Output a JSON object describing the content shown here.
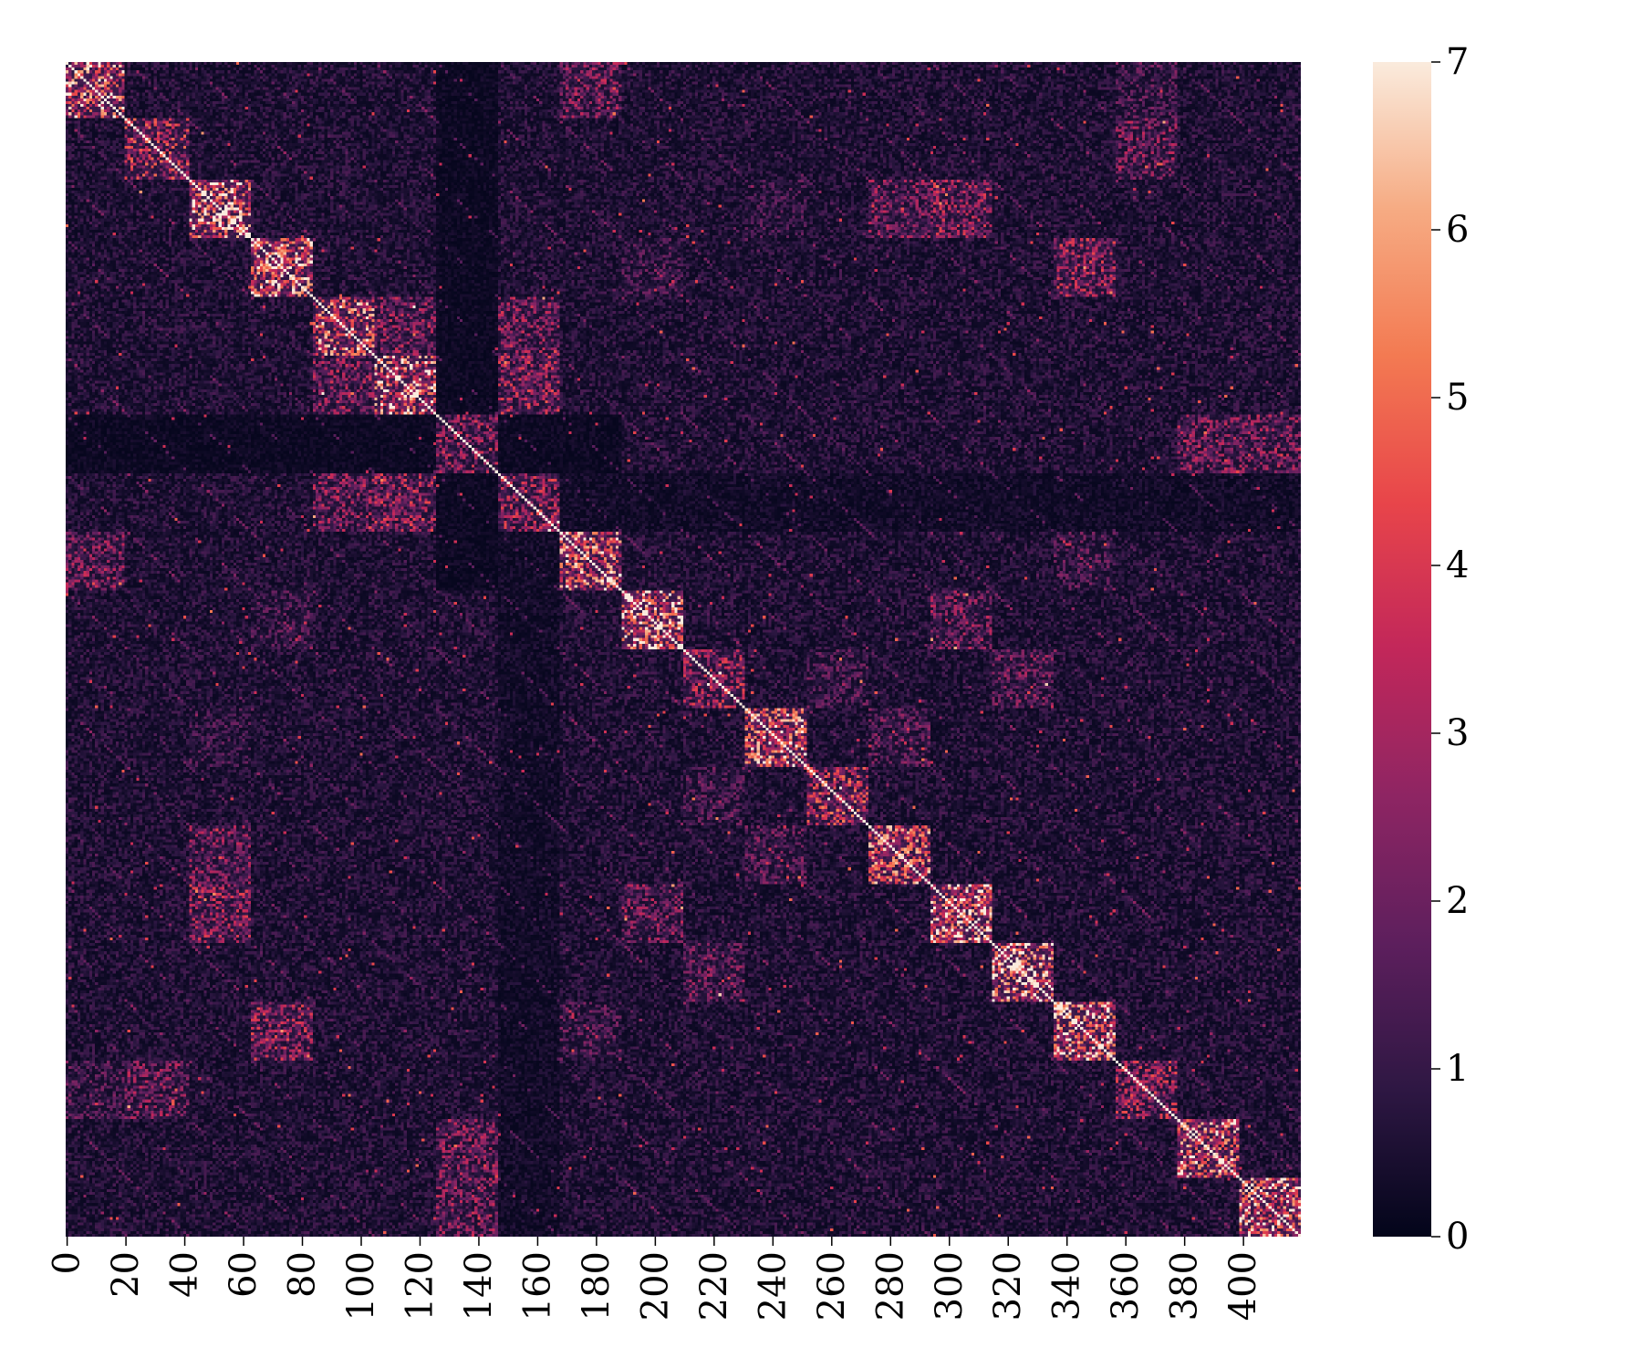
{
  "chart_data": {
    "type": "heatmap",
    "title": "",
    "xlabel": "",
    "ylabel": "",
    "matrix_size": 420,
    "x_ticks": [
      "0",
      "20",
      "40",
      "60",
      "80",
      "100",
      "120",
      "140",
      "160",
      "180",
      "200",
      "220",
      "240",
      "260",
      "280",
      "300",
      "320",
      "340",
      "360",
      "380",
      "400"
    ],
    "x_tick_values": [
      0,
      20,
      40,
      60,
      80,
      100,
      120,
      140,
      160,
      180,
      200,
      220,
      240,
      260,
      280,
      300,
      320,
      340,
      360,
      380,
      400
    ],
    "y_ticks": [],
    "colorbar": {
      "range": [
        0,
        7
      ],
      "ticks": [
        "0",
        "1",
        "2",
        "3",
        "4",
        "5",
        "6",
        "7"
      ],
      "tick_values": [
        0,
        1,
        2,
        3,
        4,
        5,
        6,
        7
      ],
      "colors": [
        "#03051a",
        "#2e1743",
        "#5d1f5d",
        "#8e2563",
        "#c2275a",
        "#e8454a",
        "#f37a52",
        "#f6ab83",
        "#faebdd"
      ]
    },
    "diagonal_blocks": [
      {
        "start": 0,
        "end": 20,
        "intensity": 4.2
      },
      {
        "start": 20,
        "end": 42,
        "intensity": 2.8
      },
      {
        "start": 42,
        "end": 63,
        "intensity": 4.5
      },
      {
        "start": 63,
        "end": 84,
        "intensity": 4.3
      },
      {
        "start": 84,
        "end": 105,
        "intensity": 4.0
      },
      {
        "start": 105,
        "end": 126,
        "intensity": 4.3
      },
      {
        "start": 126,
        "end": 147,
        "intensity": 2.3
      },
      {
        "start": 147,
        "end": 168,
        "intensity": 2.5
      },
      {
        "start": 168,
        "end": 189,
        "intensity": 4.0
      },
      {
        "start": 189,
        "end": 210,
        "intensity": 4.8
      },
      {
        "start": 210,
        "end": 231,
        "intensity": 2.5
      },
      {
        "start": 231,
        "end": 252,
        "intensity": 4.2
      },
      {
        "start": 252,
        "end": 273,
        "intensity": 3.0
      },
      {
        "start": 273,
        "end": 294,
        "intensity": 3.8
      },
      {
        "start": 294,
        "end": 315,
        "intensity": 4.4
      },
      {
        "start": 315,
        "end": 336,
        "intensity": 4.6
      },
      {
        "start": 336,
        "end": 357,
        "intensity": 4.6
      },
      {
        "start": 357,
        "end": 378,
        "intensity": 2.6
      },
      {
        "start": 378,
        "end": 399,
        "intensity": 4.2
      },
      {
        "start": 399,
        "end": 420,
        "intensity": 4.6
      }
    ],
    "off_diagonal_blocks": [
      {
        "rows": [
          0,
          20
        ],
        "cols": [
          168,
          189
        ],
        "intensity": 2.1
      },
      {
        "rows": [
          0,
          20
        ],
        "cols": [
          357,
          378
        ],
        "intensity": 1.4
      },
      {
        "rows": [
          20,
          42
        ],
        "cols": [
          357,
          378
        ],
        "intensity": 2.0
      },
      {
        "rows": [
          42,
          63
        ],
        "cols": [
          273,
          294
        ],
        "intensity": 2.0
      },
      {
        "rows": [
          42,
          63
        ],
        "cols": [
          294,
          315
        ],
        "intensity": 2.4
      },
      {
        "rows": [
          42,
          63
        ],
        "cols": [
          231,
          252
        ],
        "intensity": 1.2
      },
      {
        "rows": [
          63,
          84
        ],
        "cols": [
          336,
          357
        ],
        "intensity": 2.5
      },
      {
        "rows": [
          63,
          84
        ],
        "cols": [
          189,
          210
        ],
        "intensity": 1.3
      },
      {
        "rows": [
          84,
          105
        ],
        "cols": [
          147,
          168
        ],
        "intensity": 2.2
      },
      {
        "rows": [
          105,
          126
        ],
        "cols": [
          147,
          168
        ],
        "intensity": 2.5
      },
      {
        "rows": [
          84,
          105
        ],
        "cols": [
          105,
          126
        ],
        "intensity": 2.2
      },
      {
        "rows": [
          126,
          147
        ],
        "cols": [
          378,
          420
        ],
        "intensity": 2.1
      },
      {
        "rows": [
          147,
          168
        ],
        "cols": [
          84,
          105
        ],
        "intensity": 2.1
      },
      {
        "rows": [
          147,
          168
        ],
        "cols": [
          105,
          126
        ],
        "intensity": 2.5
      },
      {
        "rows": [
          168,
          189
        ],
        "cols": [
          336,
          357
        ],
        "intensity": 1.4
      },
      {
        "rows": [
          189,
          210
        ],
        "cols": [
          294,
          315
        ],
        "intensity": 2.0
      },
      {
        "rows": [
          210,
          231
        ],
        "cols": [
          315,
          336
        ],
        "intensity": 1.8
      },
      {
        "rows": [
          231,
          252
        ],
        "cols": [
          273,
          294
        ],
        "intensity": 1.6
      },
      {
        "rows": [
          252,
          273
        ],
        "cols": [
          210,
          231
        ],
        "intensity": 1.4
      }
    ],
    "dark_bands": [
      {
        "rows": [
          126,
          147
        ],
        "cols": [
          20,
          126
        ],
        "level": 0.3
      },
      {
        "rows": [
          0,
          147
        ],
        "cols": [
          126,
          147
        ],
        "level": 0.3
      },
      {
        "rows": [
          126,
          147
        ],
        "cols": [
          147,
          189
        ],
        "level": 0.3
      },
      {
        "rows": [
          147,
          420
        ],
        "cols": [
          147,
          168
        ],
        "level": 0.45
      }
    ],
    "background_level": 0.8,
    "diagonal_value": 7
  }
}
